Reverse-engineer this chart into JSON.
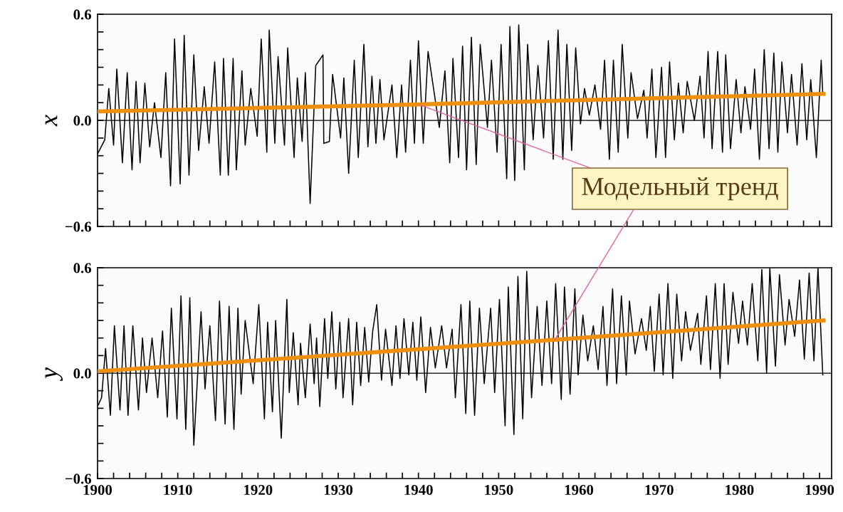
{
  "chart_data": [
    {
      "type": "line",
      "ylabel": "x",
      "tick_labels": "y",
      "grid": false,
      "legend": false,
      "xlim": [
        1900,
        1991.5
      ],
      "ylim": [
        -0.6,
        0.6
      ],
      "xticks": [
        1900,
        {
          "value": 1902,
          "label": null
        },
        {
          "value": 1904,
          "label": null
        },
        {
          "value": 1906,
          "label": null
        },
        {
          "value": 1908,
          "label": null
        },
        1910,
        {
          "value": 1912,
          "label": null
        },
        {
          "value": 1914,
          "label": null
        },
        {
          "value": 1916,
          "label": null
        },
        {
          "value": 1918,
          "label": null
        },
        1920,
        {
          "value": 1922,
          "label": null
        },
        {
          "value": 1924,
          "label": null
        },
        {
          "value": 1926,
          "label": null
        },
        {
          "value": 1928,
          "label": null
        },
        1930,
        {
          "value": 1932,
          "label": null
        },
        {
          "value": 1934,
          "label": null
        },
        {
          "value": 1936,
          "label": null
        },
        {
          "value": 1938,
          "label": null
        },
        1940,
        {
          "value": 1942,
          "label": null
        },
        {
          "value": 1944,
          "label": null
        },
        {
          "value": 1946,
          "label": null
        },
        {
          "value": 1948,
          "label": null
        },
        1950,
        {
          "value": 1952,
          "label": null
        },
        {
          "value": 1954,
          "label": null
        },
        {
          "value": 1956,
          "label": null
        },
        {
          "value": 1958,
          "label": null
        },
        1960,
        {
          "value": 1962,
          "label": null
        },
        {
          "value": 1964,
          "label": null
        },
        {
          "value": 1966,
          "label": null
        },
        {
          "value": 1968,
          "label": null
        },
        1970,
        {
          "value": 1972,
          "label": null
        },
        {
          "value": 1974,
          "label": null
        },
        {
          "value": 1976,
          "label": null
        },
        {
          "value": 1978,
          "label": null
        },
        1980,
        {
          "value": 1982,
          "label": null
        },
        {
          "value": 1984,
          "label": null
        },
        {
          "value": 1986,
          "label": null
        },
        {
          "value": 1988,
          "label": null
        },
        1990
      ],
      "yticks": [
        {
          "value": -0.6,
          "label": "−0.6"
        },
        {
          "value": -0.5,
          "label": null
        },
        {
          "value": -0.4,
          "label": null
        },
        {
          "value": -0.3,
          "label": null
        },
        {
          "value": -0.2,
          "label": null
        },
        {
          "value": -0.1,
          "label": null
        },
        {
          "value": 0,
          "label": "0.0"
        },
        {
          "value": 0.1,
          "label": null
        },
        {
          "value": 0.2,
          "label": null
        },
        {
          "value": 0.3,
          "label": null
        },
        {
          "value": 0.4,
          "label": null
        },
        {
          "value": 0.5,
          "label": null
        },
        0.6
      ],
      "ref_lines": [
        {
          "axis": "y",
          "value": 0,
          "color": "#000000"
        }
      ],
      "annotations": [
        {
          "text": "Модельный тренд",
          "x": 1940,
          "y": 0.09
        }
      ],
      "x": [
        1900.0,
        1900.9,
        1901.4,
        1902.0,
        1902.4,
        1903.1,
        1903.7,
        1904.3,
        1904.8,
        1905.3,
        1905.9,
        1906.5,
        1907.1,
        1907.9,
        1908.5,
        1909.1,
        1909.6,
        1910.3,
        1910.8,
        1911.4,
        1912.0,
        1912.6,
        1913.3,
        1913.9,
        1914.6,
        1915.3,
        1915.7,
        1916.3,
        1916.9,
        1917.3,
        1918.0,
        1918.4,
        1919.1,
        1919.9,
        1920.4,
        1921.1,
        1921.4,
        1922.1,
        1922.5,
        1923.3,
        1923.7,
        1924.5,
        1924.9,
        1925.5,
        1925.9,
        1926.5,
        1927.2,
        1928.1,
        1928.2,
        1928.9,
        1929.3,
        1930.3,
        1930.7,
        1931.3,
        1932.0,
        1932.5,
        1933.2,
        1933.7,
        1934.2,
        1934.7,
        1935.2,
        1935.7,
        1936.7,
        1937.3,
        1937.9,
        1938.4,
        1939.0,
        1939.5,
        1940.0,
        1940.6,
        1941.2,
        1942.6,
        1943.3,
        1943.9,
        1944.3,
        1945.0,
        1945.5,
        1946.0,
        1946.6,
        1947.2,
        1947.7,
        1948.6,
        1949.1,
        1949.8,
        1950.3,
        1951.0,
        1951.4,
        1952.0,
        1952.5,
        1953.2,
        1953.6,
        1954.3,
        1954.9,
        1955.6,
        1956.2,
        1956.8,
        1957.4,
        1958.0,
        1958.5,
        1959.1,
        1959.6,
        1960.2,
        1960.7,
        1961.3,
        1962.0,
        1962.7,
        1963.2,
        1963.8,
        1964.3,
        1964.9,
        1965.4,
        1966.1,
        1966.5,
        1967.3,
        1968.1,
        1968.5,
        1969.1,
        1969.6,
        1970.3,
        1970.8,
        1971.3,
        1971.9,
        1972.4,
        1973.0,
        1973.5,
        1974.4,
        1975.1,
        1975.6,
        1976.1,
        1976.6,
        1977.3,
        1977.9,
        1978.3,
        1978.9,
        1979.6,
        1980.2,
        1980.7,
        1981.4,
        1981.9,
        1982.5,
        1983.1,
        1983.7,
        1984.3,
        1984.8,
        1985.3,
        1986.0,
        1986.5,
        1987.2,
        1987.8,
        1988.4,
        1988.9,
        1989.6,
        1990.2,
        1990.4
      ],
      "series": [
        {
          "color": "#000000",
          "values": [
            -0.19,
            -0.11,
            0.18,
            -0.14,
            0.29,
            -0.24,
            0.27,
            -0.28,
            0.22,
            -0.24,
            0.21,
            -0.15,
            0.1,
            -0.21,
            0.27,
            -0.37,
            0.46,
            -0.36,
            0.48,
            -0.31,
            0.37,
            -0.17,
            0.19,
            -0.13,
            0.33,
            -0.31,
            0.35,
            -0.31,
            0.35,
            -0.28,
            0.28,
            -0.14,
            0.18,
            -0.09,
            0.46,
            -0.18,
            0.51,
            -0.13,
            0.36,
            -0.14,
            0.41,
            -0.21,
            0.24,
            -0.12,
            0.27,
            -0.47,
            0.31,
            0.37,
            -0.13,
            -0.12,
            0.26,
            -0.1,
            0.24,
            -0.3,
            0.34,
            -0.21,
            0.43,
            -0.15,
            0.25,
            -0.13,
            0.23,
            -0.11,
            0.2,
            -0.21,
            0.2,
            -0.18,
            0.34,
            -0.13,
            0.45,
            -0.13,
            0.39,
            -0.04,
            0.28,
            -0.24,
            0.35,
            -0.21,
            0.42,
            -0.28,
            0.47,
            -0.25,
            0.43,
            -0.04,
            0.34,
            -0.18,
            0.43,
            -0.33,
            0.53,
            -0.34,
            0.54,
            -0.28,
            0.43,
            -0.11,
            0.31,
            -0.1,
            0.45,
            -0.22,
            0.51,
            -0.22,
            0.43,
            -0.17,
            0.41,
            -0.02,
            0.18,
            0.03,
            0.2,
            -0.05,
            0.34,
            -0.22,
            0.34,
            -0.18,
            0.43,
            -0.1,
            0.27,
            0.01,
            0.17,
            -0.1,
            0.29,
            -0.21,
            0.3,
            -0.21,
            0.33,
            -0.11,
            0.21,
            -0.07,
            0.22,
            0.0,
            0.25,
            -0.1,
            0.39,
            -0.16,
            0.39,
            -0.18,
            0.37,
            -0.16,
            0.23,
            -0.07,
            0.19,
            -0.05,
            0.29,
            -0.22,
            0.4,
            -0.16,
            0.38,
            -0.18,
            0.33,
            -0.07,
            0.26,
            -0.14,
            0.32,
            -0.11,
            0.23,
            -0.21,
            0.34,
            0.15
          ]
        },
        {
          "color": "#f0900a",
          "x": [
            1900,
            1940,
            1990.5
          ],
          "values": [
            0.05,
            0.09,
            0.15
          ]
        }
      ]
    },
    {
      "type": "line",
      "ylabel": "y",
      "grid": false,
      "legend": false,
      "xlim": [
        1900,
        1991.5
      ],
      "ylim": [
        -0.6,
        0.6
      ],
      "xticks": [
        1900,
        {
          "value": 1902,
          "label": null
        },
        {
          "value": 1904,
          "label": null
        },
        {
          "value": 1906,
          "label": null
        },
        {
          "value": 1908,
          "label": null
        },
        1910,
        {
          "value": 1912,
          "label": null
        },
        {
          "value": 1914,
          "label": null
        },
        {
          "value": 1916,
          "label": null
        },
        {
          "value": 1918,
          "label": null
        },
        1920,
        {
          "value": 1922,
          "label": null
        },
        {
          "value": 1924,
          "label": null
        },
        {
          "value": 1926,
          "label": null
        },
        {
          "value": 1928,
          "label": null
        },
        1930,
        {
          "value": 1932,
          "label": null
        },
        {
          "value": 1934,
          "label": null
        },
        {
          "value": 1936,
          "label": null
        },
        {
          "value": 1938,
          "label": null
        },
        1940,
        {
          "value": 1942,
          "label": null
        },
        {
          "value": 1944,
          "label": null
        },
        {
          "value": 1946,
          "label": null
        },
        {
          "value": 1948,
          "label": null
        },
        1950,
        {
          "value": 1952,
          "label": null
        },
        {
          "value": 1954,
          "label": null
        },
        {
          "value": 1956,
          "label": null
        },
        {
          "value": 1958,
          "label": null
        },
        1960,
        {
          "value": 1962,
          "label": null
        },
        {
          "value": 1964,
          "label": null
        },
        {
          "value": 1966,
          "label": null
        },
        {
          "value": 1968,
          "label": null
        },
        1970,
        {
          "value": 1972,
          "label": null
        },
        {
          "value": 1974,
          "label": null
        },
        {
          "value": 1976,
          "label": null
        },
        {
          "value": 1978,
          "label": null
        },
        1980,
        {
          "value": 1982,
          "label": null
        },
        {
          "value": 1984,
          "label": null
        },
        {
          "value": 1986,
          "label": null
        },
        {
          "value": 1988,
          "label": null
        },
        1990
      ],
      "yticks": [
        {
          "value": -0.6,
          "label": "−0.6"
        },
        {
          "value": -0.5,
          "label": null
        },
        {
          "value": -0.4,
          "label": null
        },
        {
          "value": -0.3,
          "label": null
        },
        {
          "value": -0.2,
          "label": null
        },
        {
          "value": -0.1,
          "label": null
        },
        {
          "value": 0,
          "label": "0.0"
        },
        {
          "value": 0.1,
          "label": null
        },
        {
          "value": 0.2,
          "label": null
        },
        {
          "value": 0.3,
          "label": null
        },
        {
          "value": 0.4,
          "label": null
        },
        {
          "value": 0.5,
          "label": null
        },
        0.6
      ],
      "ref_lines": [
        {
          "axis": "y",
          "value": 0,
          "color": "#000000"
        }
      ],
      "x": [
        1900.1,
        1900.5,
        1901.0,
        1901.6,
        1902.1,
        1902.8,
        1903.3,
        1903.8,
        1904.4,
        1905.1,
        1905.6,
        1906.1,
        1906.8,
        1907.5,
        1908.1,
        1908.7,
        1909.2,
        1909.9,
        1910.4,
        1911.0,
        1911.5,
        1912.0,
        1912.9,
        1913.4,
        1914.0,
        1914.7,
        1915.2,
        1915.9,
        1916.4,
        1917.0,
        1917.5,
        1917.9,
        1918.4,
        1919.4,
        1920.1,
        1920.8,
        1921.2,
        1921.8,
        1922.2,
        1922.9,
        1923.6,
        1923.9,
        1924.4,
        1925.0,
        1925.3,
        1925.9,
        1926.5,
        1927.0,
        1927.3,
        1927.7,
        1928.3,
        1928.7,
        1929.2,
        1929.7,
        1930.2,
        1930.6,
        1931.3,
        1931.8,
        1932.3,
        1932.8,
        1933.3,
        1933.8,
        1934.3,
        1934.8,
        1935.4,
        1935.9,
        1936.7,
        1937.2,
        1937.7,
        1938.2,
        1938.8,
        1939.3,
        1939.8,
        1940.3,
        1940.9,
        1941.5,
        1942.1,
        1942.9,
        1943.5,
        1944.2,
        1944.6,
        1945.3,
        1945.9,
        1946.4,
        1947.0,
        1947.6,
        1948.2,
        1949.0,
        1949.5,
        1950.1,
        1950.8,
        1951.2,
        1951.9,
        1952.4,
        1953.0,
        1953.5,
        1954.1,
        1954.8,
        1955.4,
        1956.0,
        1956.6,
        1957.1,
        1957.8,
        1958.2,
        1958.9,
        1959.5,
        1959.9,
        1960.5,
        1961.1,
        1961.8,
        1962.4,
        1963.0,
        1963.5,
        1964.2,
        1964.7,
        1965.3,
        1965.9,
        1966.3,
        1967.0,
        1967.8,
        1968.4,
        1968.9,
        1969.4,
        1970.0,
        1970.5,
        1971.1,
        1971.7,
        1972.2,
        1972.8,
        1973.3,
        1973.9,
        1974.8,
        1975.2,
        1975.9,
        1976.4,
        1977.0,
        1977.6,
        1978.1,
        1978.6,
        1979.2,
        1979.9,
        1980.4,
        1981.0,
        1981.6,
        1982.3,
        1982.8,
        1983.4,
        1983.8,
        1984.5,
        1985.0,
        1985.7,
        1986.2,
        1986.9,
        1987.5,
        1988.1,
        1988.7,
        1989.3,
        1989.8,
        1990.4
      ],
      "series": [
        {
          "color": "#000000",
          "values": [
            -0.18,
            -0.14,
            0.14,
            -0.24,
            0.27,
            -0.21,
            0.27,
            -0.24,
            0.27,
            -0.21,
            0.2,
            -0.11,
            0.2,
            -0.14,
            0.24,
            -0.25,
            0.37,
            -0.26,
            0.44,
            -0.32,
            0.43,
            -0.41,
            0.35,
            -0.09,
            0.27,
            -0.27,
            0.41,
            -0.29,
            0.38,
            -0.32,
            0.37,
            -0.12,
            0.3,
            -0.06,
            0.39,
            -0.26,
            0.29,
            -0.22,
            0.3,
            -0.37,
            0.42,
            -0.11,
            0.23,
            -0.18,
            0.17,
            -0.14,
            0.28,
            -0.06,
            0.2,
            -0.19,
            0.31,
            -0.03,
            0.35,
            -0.09,
            0.29,
            -0.14,
            0.31,
            -0.18,
            0.29,
            -0.07,
            0.26,
            -0.05,
            0.24,
            0.39,
            -0.04,
            0.25,
            -0.07,
            0.27,
            -0.03,
            0.31,
            -0.01,
            0.29,
            -0.04,
            0.32,
            -0.11,
            0.26,
            0.03,
            0.27,
            0.03,
            0.25,
            -0.14,
            0.39,
            -0.23,
            0.41,
            -0.24,
            0.37,
            -0.06,
            0.37,
            -0.11,
            0.42,
            -0.3,
            0.49,
            -0.35,
            0.55,
            -0.26,
            0.58,
            -0.14,
            0.38,
            -0.07,
            0.41,
            -0.06,
            0.51,
            -0.15,
            0.49,
            -0.12,
            0.48,
            -0.01,
            0.33,
            0.07,
            0.27,
            0.02,
            0.38,
            -0.07,
            0.48,
            -0.06,
            0.44,
            -0.01,
            0.41,
            0.11,
            0.31,
            0.13,
            0.38,
            0.01,
            0.45,
            -0.01,
            0.51,
            -0.03,
            0.45,
            0.07,
            0.35,
            0.13,
            0.34,
            0.05,
            0.44,
            0.02,
            0.51,
            -0.03,
            0.51,
            0.05,
            0.46,
            0.17,
            0.41,
            0.16,
            0.51,
            0.07,
            0.59,
            0.0,
            0.6,
            0.04,
            0.56,
            0.16,
            0.42,
            0.21,
            0.53,
            0.08,
            0.57,
            0.07,
            0.6,
            -0.01
          ]
        },
        {
          "color": "#f0900a",
          "x": [
            1900,
            1957,
            1990.5
          ],
          "values": [
            0.01,
            0.19,
            0.3
          ]
        }
      ]
    }
  ]
}
